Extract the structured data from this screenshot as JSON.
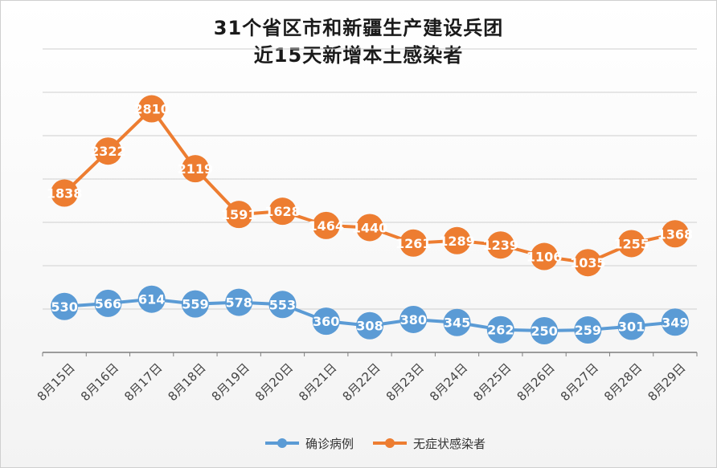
{
  "chart_data": {
    "type": "line",
    "title": "31个省区市和新疆生产建设兵团",
    "subtitle": "近15天新增本土感染者",
    "categories": [
      "8月15日",
      "8月16日",
      "8月17日",
      "8月18日",
      "8月19日",
      "8月20日",
      "8月21日",
      "8月22日",
      "8月23日",
      "8月24日",
      "8月25日",
      "8月26日",
      "8月27日",
      "8月28日",
      "8月29日"
    ],
    "series": [
      {
        "name": "确诊病例",
        "color": "#5b9bd5",
        "values": [
          530,
          566,
          614,
          559,
          578,
          553,
          360,
          308,
          380,
          345,
          262,
          250,
          259,
          301,
          349
        ]
      },
      {
        "name": "无症状感染者",
        "color": "#ed7d31",
        "values": [
          1838,
          2322,
          2810,
          2119,
          1591,
          1628,
          1464,
          1440,
          1261,
          1289,
          1239,
          1106,
          1035,
          1255,
          1368
        ]
      }
    ],
    "ylim": [
      0,
      3500
    ],
    "ytick_step": 500,
    "grid": true,
    "data_labels": true,
    "legend": "bottom"
  }
}
